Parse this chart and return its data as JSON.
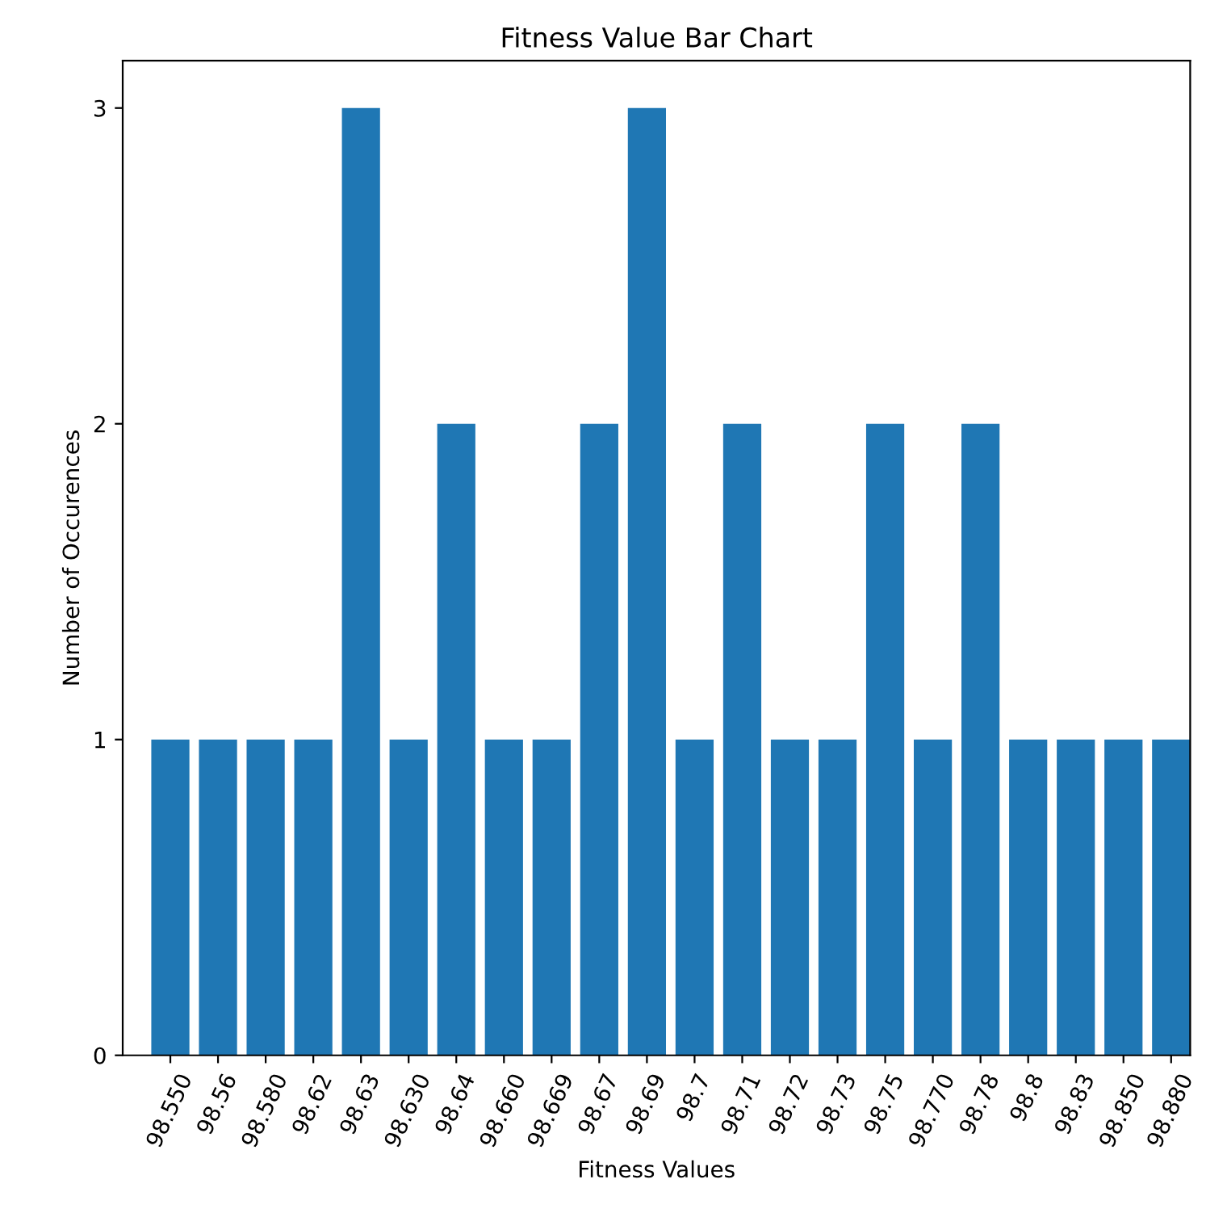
{
  "chart_data": {
    "type": "bar",
    "title": "Fitness Value Bar Chart",
    "xlabel": "Fitness Values",
    "ylabel": "Number of Occurences",
    "categories": [
      "98.550",
      "98.56",
      "98.580",
      "98.62",
      "98.63",
      "98.630",
      "98.64",
      "98.660",
      "98.669",
      "98.67",
      "98.69",
      "98.7",
      "98.71",
      "98.72",
      "98.73",
      "98.75",
      "98.770",
      "98.78",
      "98.8",
      "98.83",
      "98.850",
      "98.880"
    ],
    "values": [
      1,
      1,
      1,
      1,
      3,
      1,
      2,
      1,
      1,
      2,
      3,
      1,
      2,
      1,
      1,
      2,
      1,
      2,
      1,
      1,
      1,
      1
    ],
    "color": "#1f77b4",
    "ylim": [
      0,
      3.15
    ],
    "yticks": [
      0,
      1,
      2,
      3
    ],
    "grid": false
  }
}
